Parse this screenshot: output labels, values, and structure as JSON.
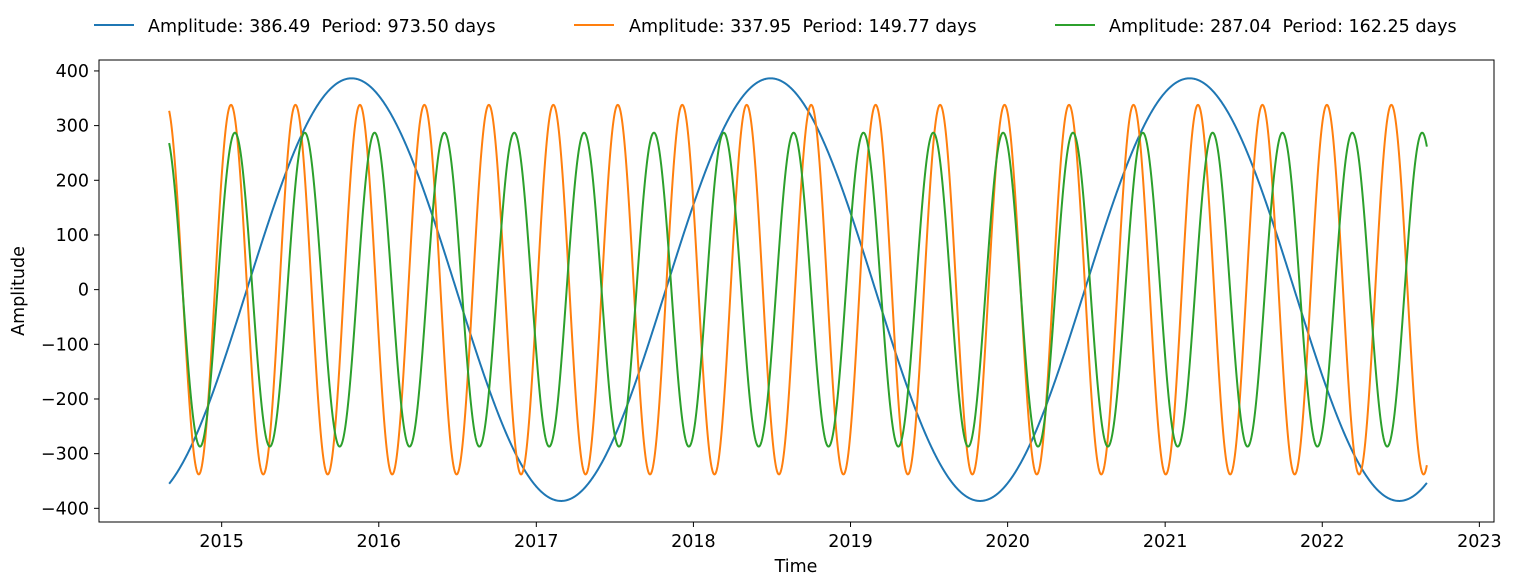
{
  "chart_data": {
    "type": "line",
    "title": "",
    "xlabel": "Time",
    "ylabel": "Amplitude",
    "xlim": [
      "2014-03-22",
      "2023-02-04"
    ],
    "ylim": [
      -425,
      420
    ],
    "x_start": "2014-09-01",
    "x_end": "2022-09-01",
    "xticks": [
      {
        "date": "2015-01-01",
        "label": "2015"
      },
      {
        "date": "2016-01-01",
        "label": "2016"
      },
      {
        "date": "2017-01-01",
        "label": "2017"
      },
      {
        "date": "2018-01-01",
        "label": "2018"
      },
      {
        "date": "2019-01-01",
        "label": "2019"
      },
      {
        "date": "2020-01-01",
        "label": "2020"
      },
      {
        "date": "2021-01-01",
        "label": "2021"
      },
      {
        "date": "2022-01-01",
        "label": "2022"
      },
      {
        "date": "2023-01-01",
        "label": "2023"
      }
    ],
    "yticks": [
      {
        "value": 400,
        "label": "400"
      },
      {
        "value": 300,
        "label": "300"
      },
      {
        "value": 200,
        "label": "200"
      },
      {
        "value": 100,
        "label": "100"
      },
      {
        "value": 0,
        "label": "0"
      },
      {
        "value": -100,
        "label": "−100"
      },
      {
        "value": -200,
        "label": "−200"
      },
      {
        "value": -300,
        "label": "−300"
      },
      {
        "value": -400,
        "label": "−400"
      }
    ],
    "grid": false,
    "legend_position": "top, outside, horizontal",
    "series": [
      {
        "name": "Amplitude: 386.49  Period: 973.50 days",
        "color": "#1f77b4",
        "amplitude": 386.49,
        "period_days": 973.5,
        "y_at_start": -355,
        "initial_direction": "up"
      },
      {
        "name": "Amplitude: 337.95  Period: 149.77 days",
        "color": "#ff7f0e",
        "amplitude": 337.95,
        "period_days": 149.77,
        "y_at_start": 327,
        "initial_direction": "down"
      },
      {
        "name": "Amplitude: 287.04  Period: 162.25 days",
        "color": "#2ca02c",
        "amplitude": 287.04,
        "period_days": 162.25,
        "y_at_start": 268,
        "initial_direction": "down"
      }
    ]
  }
}
